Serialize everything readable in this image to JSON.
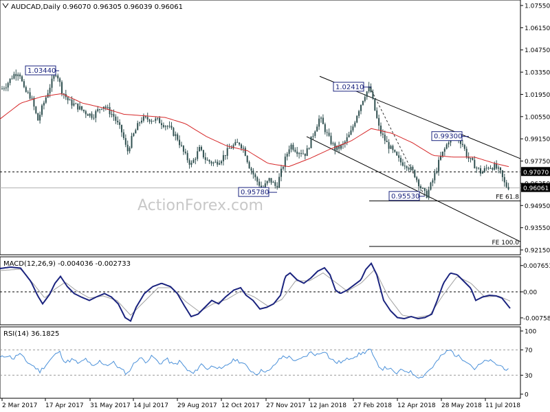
{
  "main_title": "AUDCAD,Daily  0.96070 0.96305 0.96039 0.96061",
  "watermark": "ActionForex.com",
  "colors": {
    "candle": "#2f4f4f",
    "sma": "#d62728",
    "macd": "#1a237e",
    "signal": "#a0a0a0",
    "rsi": "#4a90d9",
    "label_box": "#1a237e",
    "dashed": "#333333",
    "current_price_bg": "#000000",
    "level_bg": "#000000"
  },
  "x_axis_labels": [
    "2 Mar 2017",
    "17 Apr 2017",
    "31 May 2017",
    "14 Jul 2017",
    "29 Aug 2017",
    "12 Oct 2017",
    "27 Nov 2017",
    "12 Jan 2018",
    "27 Feb 2018",
    "12 Apr 2018",
    "28 May 2018",
    "11 Jul 2018"
  ],
  "chart_data": [
    {
      "type": "candlestick",
      "title": "AUDCAD,Daily  0.96070 0.96305 0.96039 0.96061",
      "y_ticks": [
        "1.07550",
        "1.06150",
        "1.04750",
        "1.03350",
        "1.01950",
        "1.00550",
        "0.99150",
        "0.97750",
        "0.96350",
        "0.94950",
        "0.93550",
        "0.92150"
      ],
      "ylim": [
        0.9215,
        1.0755
      ],
      "current_price": "0.96061",
      "horizontal_level": "0.97070",
      "close_series_approx": [
        [
          0,
          1.022
        ],
        [
          10,
          1.026
        ],
        [
          20,
          1.032
        ],
        [
          28,
          1.034
        ],
        [
          35,
          1.022
        ],
        [
          45,
          1.018
        ],
        [
          55,
          1.003
        ],
        [
          62,
          1.012
        ],
        [
          72,
          1.024
        ],
        [
          82,
          1.034
        ],
        [
          90,
          1.022
        ],
        [
          100,
          1.015
        ],
        [
          112,
          1.012
        ],
        [
          125,
          1.008
        ],
        [
          135,
          1.006
        ],
        [
          150,
          1.013
        ],
        [
          165,
          1.006
        ],
        [
          178,
          0.995
        ],
        [
          185,
          0.983
        ],
        [
          192,
          0.992
        ],
        [
          205,
          1.004
        ],
        [
          218,
          1.004
        ],
        [
          230,
          1.003
        ],
        [
          245,
          0.999
        ],
        [
          258,
          0.992
        ],
        [
          268,
          0.982
        ],
        [
          278,
          0.975
        ],
        [
          290,
          0.985
        ],
        [
          300,
          0.978
        ],
        [
          312,
          0.976
        ],
        [
          322,
          0.979
        ],
        [
          335,
          0.986
        ],
        [
          348,
          0.989
        ],
        [
          355,
          0.985
        ],
        [
          362,
          0.975
        ],
        [
          372,
          0.966
        ],
        [
          382,
          0.96
        ],
        [
          392,
          0.966
        ],
        [
          402,
          0.961
        ],
        [
          412,
          0.975
        ],
        [
          422,
          0.988
        ],
        [
          432,
          0.984
        ],
        [
          445,
          0.982
        ],
        [
          455,
          0.994
        ],
        [
          465,
          1.005
        ],
        [
          478,
          0.992
        ],
        [
          488,
          0.985
        ],
        [
          498,
          0.987
        ],
        [
          510,
          0.995
        ],
        [
          520,
          1.008
        ],
        [
          530,
          1.019
        ],
        [
          538,
          1.024
        ],
        [
          545,
          1.01
        ],
        [
          552,
          0.997
        ],
        [
          562,
          0.989
        ],
        [
          572,
          0.983
        ],
        [
          582,
          0.977
        ],
        [
          592,
          0.975
        ],
        [
          602,
          0.97
        ],
        [
          612,
          0.961
        ],
        [
          620,
          0.9553
        ],
        [
          630,
          0.966
        ],
        [
          640,
          0.979
        ],
        [
          648,
          0.986
        ],
        [
          655,
          0.993
        ],
        [
          663,
          0.993
        ],
        [
          672,
          0.989
        ],
        [
          680,
          0.98
        ],
        [
          690,
          0.975
        ],
        [
          700,
          0.97
        ],
        [
          710,
          0.974
        ],
        [
          720,
          0.974
        ],
        [
          728,
          0.97
        ],
        [
          735,
          0.962
        ],
        [
          742,
          0.961
        ]
      ],
      "sma_series_approx": [
        [
          0,
          1.004
        ],
        [
          30,
          1.014
        ],
        [
          60,
          1.018
        ],
        [
          90,
          1.02
        ],
        [
          120,
          1.014
        ],
        [
          150,
          1.011
        ],
        [
          180,
          1.007
        ],
        [
          210,
          1.006
        ],
        [
          240,
          1.005
        ],
        [
          270,
          1.001
        ],
        [
          300,
          0.993
        ],
        [
          330,
          0.987
        ],
        [
          360,
          0.984
        ],
        [
          390,
          0.976
        ],
        [
          420,
          0.974
        ],
        [
          450,
          0.979
        ],
        [
          480,
          0.985
        ],
        [
          510,
          0.99
        ],
        [
          540,
          0.998
        ],
        [
          570,
          0.995
        ],
        [
          600,
          0.989
        ],
        [
          630,
          0.981
        ],
        [
          660,
          0.98
        ],
        [
          690,
          0.98
        ],
        [
          720,
          0.976
        ],
        [
          740,
          0.974
        ]
      ],
      "annotations": [
        {
          "label": "1.03440",
          "x": 86,
          "y": 1.0344
        },
        {
          "label": "0.95780",
          "x": 378,
          "y": 0.9578
        },
        {
          "label": "1.02410",
          "x": 536,
          "y": 1.0241
        },
        {
          "label": "0.95530",
          "x": 618,
          "y": 0.9553
        },
        {
          "label": "0.99300",
          "x": 668,
          "y": 0.993
        }
      ],
      "fe_lines": [
        {
          "label": "FE 61.8",
          "y": 0.9524,
          "x_start": 537
        },
        {
          "label": "FE 100.0",
          "y": 0.9237,
          "x_start": 537
        }
      ],
      "channel_upper": [
        [
          465,
          1.0309
        ],
        [
          757,
          0.979
        ]
      ],
      "channel_lower": [
        [
          446,
          0.9929
        ],
        [
          757,
          0.9267
        ]
      ],
      "projection_dashed": [
        [
          538,
          1.0241
        ],
        [
          618,
          0.9553
        ]
      ]
    },
    {
      "type": "line",
      "title": "MACD(12,26,9) -0.004036 -0.002733",
      "y_ticks": [
        "0.007653",
        "0.00",
        "-0.007581"
      ],
      "ylim": [
        -0.009,
        0.009
      ],
      "macd_series_approx": [
        [
          0,
          0.0068
        ],
        [
          15,
          0.0072
        ],
        [
          30,
          0.0069
        ],
        [
          45,
          0.003
        ],
        [
          55,
          -0.0012
        ],
        [
          62,
          -0.0035
        ],
        [
          72,
          -0.0008
        ],
        [
          80,
          0.0025
        ],
        [
          88,
          0.0045
        ],
        [
          98,
          0.0015
        ],
        [
          108,
          -0.0005
        ],
        [
          118,
          -0.0015
        ],
        [
          130,
          -0.0025
        ],
        [
          140,
          -0.0015
        ],
        [
          152,
          -0.0005
        ],
        [
          162,
          -0.0015
        ],
        [
          172,
          -0.0035
        ],
        [
          182,
          -0.0075
        ],
        [
          190,
          -0.0085
        ],
        [
          198,
          -0.0045
        ],
        [
          210,
          -0.0005
        ],
        [
          222,
          0.0015
        ],
        [
          235,
          0.0025
        ],
        [
          248,
          0.0015
        ],
        [
          258,
          -0.0005
        ],
        [
          268,
          -0.004
        ],
        [
          278,
          -0.0072
        ],
        [
          288,
          -0.0065
        ],
        [
          298,
          -0.0045
        ],
        [
          308,
          -0.0025
        ],
        [
          318,
          -0.0035
        ],
        [
          328,
          -0.0015
        ],
        [
          340,
          0.0005
        ],
        [
          350,
          0.0012
        ],
        [
          358,
          -0.001
        ],
        [
          368,
          -0.0025
        ],
        [
          378,
          -0.005
        ],
        [
          388,
          -0.0045
        ],
        [
          398,
          -0.0035
        ],
        [
          408,
          -0.001
        ],
        [
          415,
          0.0045
        ],
        [
          422,
          0.0055
        ],
        [
          432,
          0.0035
        ],
        [
          442,
          0.0025
        ],
        [
          452,
          0.004
        ],
        [
          462,
          0.006
        ],
        [
          472,
          0.007
        ],
        [
          480,
          0.005
        ],
        [
          488,
          0.0005
        ],
        [
          495,
          -0.0005
        ],
        [
          505,
          0.0005
        ],
        [
          515,
          0.002
        ],
        [
          525,
          0.0035
        ],
        [
          532,
          0.0065
        ],
        [
          540,
          0.0083
        ],
        [
          548,
          0.005
        ],
        [
          558,
          -0.0025
        ],
        [
          568,
          -0.0055
        ],
        [
          578,
          -0.0075
        ],
        [
          588,
          -0.0078
        ],
        [
          598,
          -0.0072
        ],
        [
          608,
          -0.0078
        ],
        [
          618,
          -0.0075
        ],
        [
          628,
          -0.0065
        ],
        [
          636,
          -0.0025
        ],
        [
          645,
          0.0025
        ],
        [
          655,
          0.0055
        ],
        [
          665,
          0.005
        ],
        [
          675,
          0.003
        ],
        [
          685,
          0.001
        ],
        [
          692,
          -0.0025
        ],
        [
          702,
          -0.0015
        ],
        [
          712,
          -0.001
        ],
        [
          722,
          -0.0012
        ],
        [
          730,
          -0.0018
        ],
        [
          742,
          -0.0048
        ]
      ],
      "signal_series_approx": [
        [
          0,
          0.0062
        ],
        [
          30,
          0.0066
        ],
        [
          50,
          0.002
        ],
        [
          65,
          -0.0018
        ],
        [
          80,
          0.0008
        ],
        [
          95,
          0.0028
        ],
        [
          110,
          0.0005
        ],
        [
          130,
          -0.0018
        ],
        [
          150,
          -0.0012
        ],
        [
          170,
          -0.0025
        ],
        [
          190,
          -0.0068
        ],
        [
          210,
          -0.0028
        ],
        [
          230,
          0.0012
        ],
        [
          250,
          0.0012
        ],
        [
          270,
          -0.0028
        ],
        [
          290,
          -0.0058
        ],
        [
          310,
          -0.0035
        ],
        [
          330,
          -0.0022
        ],
        [
          350,
          0.0002
        ],
        [
          370,
          -0.0015
        ],
        [
          390,
          -0.0042
        ],
        [
          410,
          -0.0022
        ],
        [
          430,
          0.0032
        ],
        [
          450,
          0.0032
        ],
        [
          470,
          0.0055
        ],
        [
          490,
          0.0025
        ],
        [
          505,
          0.0002
        ],
        [
          525,
          0.0025
        ],
        [
          545,
          0.0065
        ],
        [
          565,
          -0.0015
        ],
        [
          585,
          -0.0068
        ],
        [
          605,
          -0.0075
        ],
        [
          625,
          -0.0068
        ],
        [
          645,
          -0.0008
        ],
        [
          665,
          0.0045
        ],
        [
          685,
          0.0025
        ],
        [
          705,
          -0.0015
        ],
        [
          725,
          -0.0012
        ],
        [
          742,
          -0.0027
        ]
      ]
    },
    {
      "type": "line",
      "title": "RSI(14) 36.1825",
      "y_ticks": [
        "100",
        "70",
        "30",
        "0"
      ],
      "ylim": [
        0,
        100
      ],
      "levels": [
        70,
        30
      ],
      "rsi_series_approx": [
        [
          0,
          57
        ],
        [
          10,
          62
        ],
        [
          20,
          56
        ],
        [
          28,
          65
        ],
        [
          38,
          52
        ],
        [
          48,
          45
        ],
        [
          58,
          36
        ],
        [
          68,
          48
        ],
        [
          78,
          60
        ],
        [
          86,
          68
        ],
        [
          95,
          50
        ],
        [
          105,
          55
        ],
        [
          115,
          48
        ],
        [
          125,
          56
        ],
        [
          135,
          42
        ],
        [
          145,
          52
        ],
        [
          155,
          46
        ],
        [
          165,
          50
        ],
        [
          175,
          40
        ],
        [
          185,
          32
        ],
        [
          192,
          44
        ],
        [
          202,
          58
        ],
        [
          212,
          52
        ],
        [
          222,
          60
        ],
        [
          232,
          48
        ],
        [
          242,
          56
        ],
        [
          252,
          46
        ],
        [
          262,
          52
        ],
        [
          272,
          38
        ],
        [
          282,
          32
        ],
        [
          292,
          48
        ],
        [
          302,
          40
        ],
        [
          312,
          46
        ],
        [
          322,
          38
        ],
        [
          332,
          48
        ],
        [
          342,
          55
        ],
        [
          352,
          50
        ],
        [
          362,
          40
        ],
        [
          372,
          32
        ],
        [
          382,
          38
        ],
        [
          392,
          36
        ],
        [
          402,
          50
        ],
        [
          412,
          60
        ],
        [
          422,
          58
        ],
        [
          432,
          52
        ],
        [
          442,
          58
        ],
        [
          452,
          66
        ],
        [
          462,
          62
        ],
        [
          472,
          70
        ],
        [
          480,
          56
        ],
        [
          490,
          50
        ],
        [
          500,
          52
        ],
        [
          510,
          58
        ],
        [
          520,
          62
        ],
        [
          530,
          66
        ],
        [
          538,
          72
        ],
        [
          545,
          54
        ],
        [
          555,
          40
        ],
        [
          565,
          42
        ],
        [
          575,
          32
        ],
        [
          585,
          38
        ],
        [
          595,
          36
        ],
        [
          605,
          30
        ],
        [
          612,
          26
        ],
        [
          620,
          34
        ],
        [
          630,
          44
        ],
        [
          640,
          58
        ],
        [
          648,
          66
        ],
        [
          655,
          70
        ],
        [
          662,
          62
        ],
        [
          670,
          58
        ],
        [
          680,
          52
        ],
        [
          690,
          40
        ],
        [
          700,
          48
        ],
        [
          710,
          54
        ],
        [
          720,
          48
        ],
        [
          730,
          44
        ],
        [
          742,
          36
        ]
      ]
    }
  ]
}
